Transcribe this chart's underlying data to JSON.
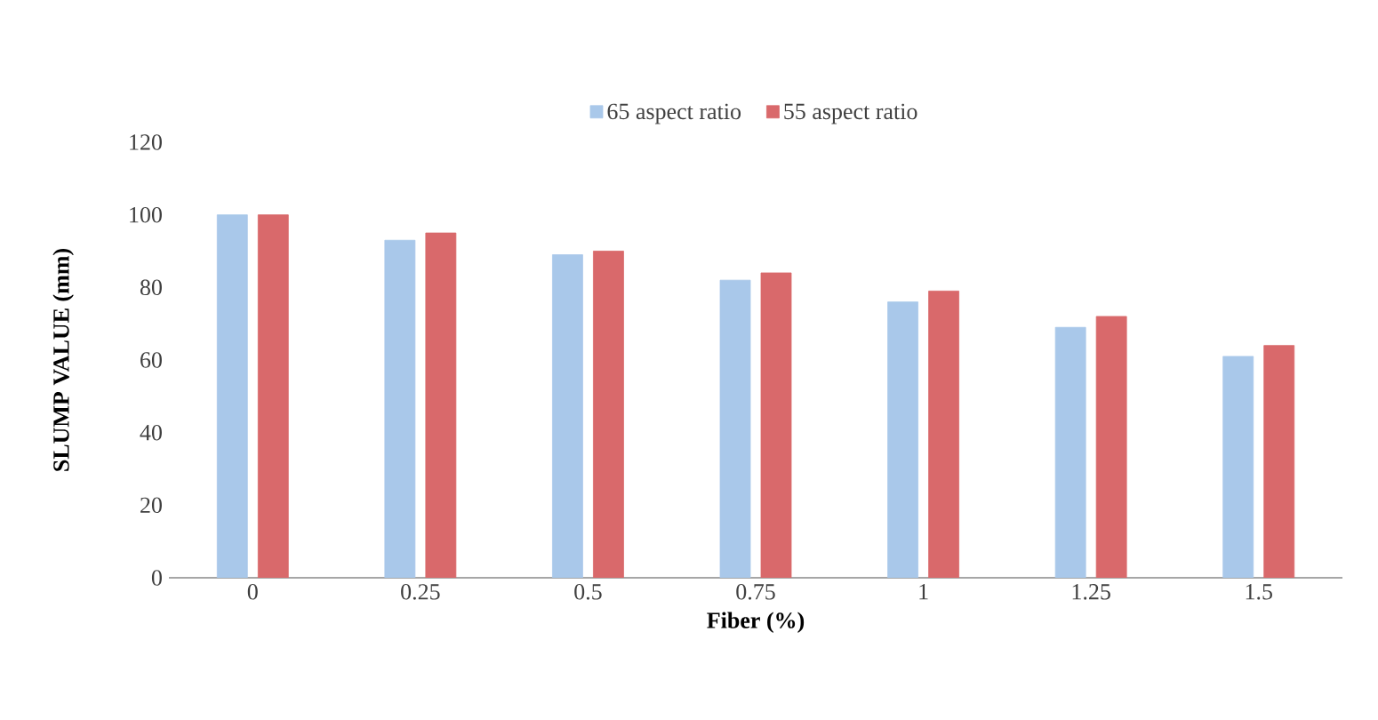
{
  "chart_data": {
    "type": "bar",
    "xlabel": "Fiber (%)",
    "ylabel": "SLUMP VALUE (mm)",
    "categories": [
      "0",
      "0.25",
      "0.5",
      "0.75",
      "1",
      "1.25",
      "1.5"
    ],
    "series": [
      {
        "name": "65 aspect ratio",
        "color": "#a9c8ea",
        "values": [
          100,
          93,
          89,
          82,
          76,
          69,
          61
        ]
      },
      {
        "name": "55 aspect ratio",
        "color": "#d9696b",
        "values": [
          100,
          95,
          90,
          84,
          79,
          72,
          64
        ]
      }
    ],
    "ylim": [
      0,
      120
    ],
    "yticks": [
      0,
      20,
      40,
      60,
      80,
      100,
      120
    ],
    "legend": "top"
  }
}
